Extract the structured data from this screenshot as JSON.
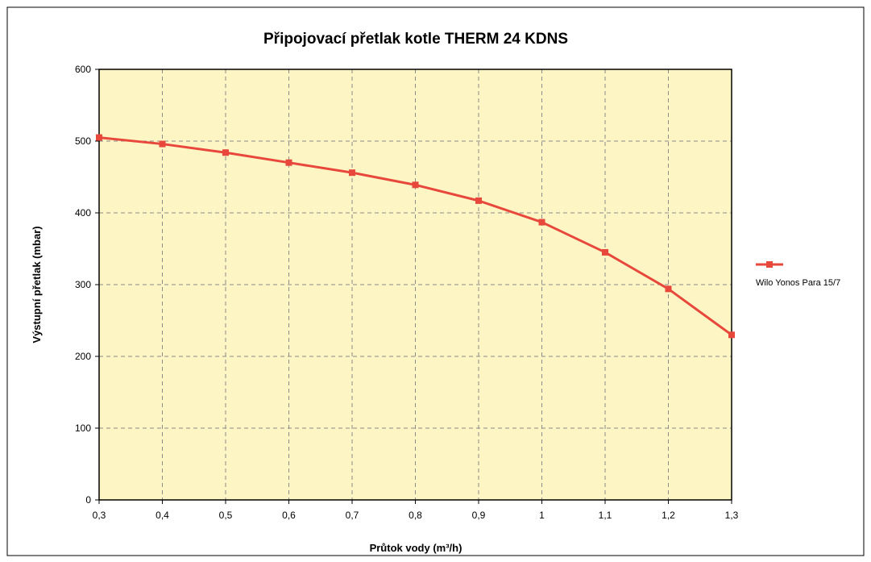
{
  "chart_data": {
    "type": "line",
    "title": "Připojovací přetlak kotle THERM 24 KDNS",
    "xlabel": "Průtok vody (m³/h)",
    "ylabel": "Výstupní přetlak (mbar)",
    "x": [
      0.3,
      0.4,
      0.5,
      0.6,
      0.7,
      0.8,
      0.9,
      1.0,
      1.1,
      1.2,
      1.3
    ],
    "x_tick_labels": [
      "0,3",
      "0,4",
      "0,5",
      "0,6",
      "0,7",
      "0,8",
      "0,9",
      "1",
      "1,1",
      "1,2",
      "1,3"
    ],
    "y_tick_labels": [
      "0",
      "100",
      "200",
      "300",
      "400",
      "500",
      "600"
    ],
    "xlim": [
      0.3,
      1.3
    ],
    "ylim": [
      0,
      600
    ],
    "grid": true,
    "legend_position": "right",
    "series": [
      {
        "name": "Wilo Yonos Para 15/7",
        "color": "#e8483c",
        "values": [
          505,
          496,
          484,
          470,
          456,
          439,
          417,
          387,
          345,
          294,
          230
        ]
      }
    ],
    "colors": {
      "plot_background": "#fdf5c4",
      "grid": "#8c8c8c",
      "frame": "#000000"
    }
  }
}
